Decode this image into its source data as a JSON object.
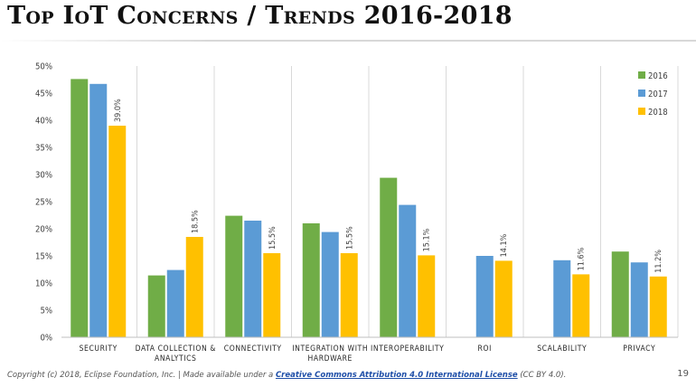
{
  "title": "Top IoT Concerns / Trends 2016-2018",
  "footer": {
    "prefix": "Copyright (c) 2018, Eclipse Foundation, Inc. | Made available under a ",
    "link_text": "Creative Commons Attribution 4.0 International License",
    "suffix": " (CC BY 4.0)."
  },
  "page_number": "19",
  "colors": {
    "2016": "#70ad47",
    "2017": "#5b9bd5",
    "2018": "#ffc000"
  },
  "chart_data": {
    "type": "bar",
    "title": "Top IoT Concerns / Trends 2016-2018",
    "xlabel": "",
    "ylabel": "",
    "ylim": [
      0,
      50
    ],
    "ytick_step": 5,
    "ytick_format": "percent",
    "grid": false,
    "legend_position": "top-right",
    "categories": [
      [
        "SECURITY"
      ],
      [
        "DATA COLLECTION &",
        "ANALYTICS"
      ],
      [
        "CONNECTIVITY"
      ],
      [
        "INTEGRATION WITH",
        "HARDWARE"
      ],
      [
        "INTEROPERABILITY"
      ],
      [
        "ROI"
      ],
      [
        "SCALABILITY"
      ],
      [
        "PRIVACY"
      ]
    ],
    "series": [
      {
        "name": "2016",
        "color": "#70ad47",
        "values": [
          47.6,
          11.4,
          22.4,
          21.0,
          29.4,
          null,
          null,
          15.8
        ],
        "labels": [
          null,
          null,
          null,
          null,
          null,
          null,
          null,
          null
        ]
      },
      {
        "name": "2017",
        "color": "#5b9bd5",
        "values": [
          46.7,
          12.4,
          21.5,
          19.4,
          24.4,
          15.0,
          14.2,
          13.8
        ],
        "labels": [
          null,
          null,
          null,
          null,
          null,
          null,
          null,
          null
        ]
      },
      {
        "name": "2018",
        "color": "#ffc000",
        "values": [
          39.0,
          18.5,
          15.5,
          15.5,
          15.1,
          14.1,
          11.6,
          11.2
        ],
        "labels": [
          "39.0%",
          "18.5%",
          "15.5%",
          "15.5%",
          "15.1%",
          "14.1%",
          "11.6%",
          "11.2%"
        ]
      }
    ]
  }
}
